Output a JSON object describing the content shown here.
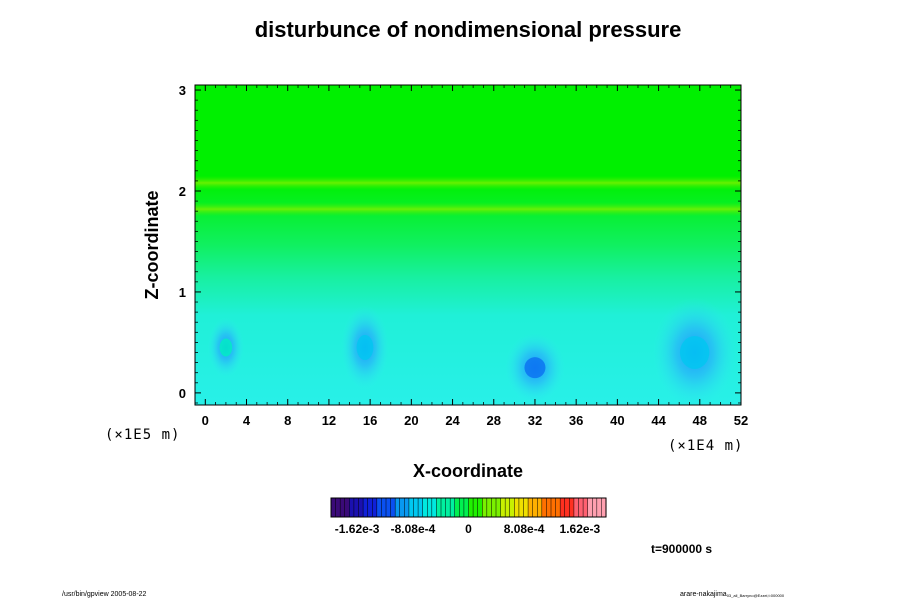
{
  "chart_data": {
    "type": "heatmap",
    "title": "disturbunce of nondimensional pressure",
    "xlabel": "X-coordinate",
    "ylabel": "Z-coordinate",
    "x_scale_label": "(×1E4 m)",
    "y_scale_label": "(×1E5 m)",
    "xlim": [
      -1,
      52
    ],
    "ylim": [
      -0.12,
      3.05
    ],
    "x_ticks": [
      "0",
      "4",
      "8",
      "12",
      "16",
      "20",
      "24",
      "28",
      "32",
      "36",
      "40",
      "44",
      "48",
      "52"
    ],
    "x_tick_values": [
      0,
      4,
      8,
      12,
      16,
      20,
      24,
      28,
      32,
      36,
      40,
      44,
      48,
      52
    ],
    "y_ticks": [
      "0",
      "1",
      "2",
      "3"
    ],
    "y_tick_values": [
      0,
      1,
      2,
      3
    ],
    "grid": false,
    "colorbar": {
      "range": [
        -0.002,
        0.002
      ],
      "tick_labels": [
        "-1.62e-3",
        "-8.08e-4",
        "0",
        "8.08e-4",
        "1.62e-3"
      ],
      "tick_values": [
        -0.00162,
        -0.000808,
        0,
        0.000808,
        0.00162
      ],
      "colors": [
        "#3a0a78",
        "#1020c8",
        "#0a70f0",
        "#00c8f0",
        "#00f0c0",
        "#00f040",
        "#7af000",
        "#e8f000",
        "#ff8000",
        "#ff2020",
        "#ff9aa0"
      ]
    },
    "background_value": 5e-05,
    "features": [
      {
        "label": "negative minimum",
        "x": 32.0,
        "z": 0.25,
        "value": -0.00095
      },
      {
        "label": "negative minimum",
        "x": 15.5,
        "z": 0.45,
        "value": -0.0008
      },
      {
        "label": "negative minimum",
        "x": 47.5,
        "z": 0.4,
        "value": -0.00065
      },
      {
        "label": "negative minimum",
        "x": 2.0,
        "z": 0.45,
        "value": -0.0004
      },
      {
        "label": "positive band",
        "x": 26.0,
        "z": 1.82,
        "value": 0.00035
      },
      {
        "label": "positive band",
        "x": 26.0,
        "z": 2.08,
        "value": 0.0002
      }
    ]
  },
  "annotations": {
    "time": "t=900000 s",
    "footer_left": "/usr/bin/gpview 2005-08-22",
    "footer_right": "arare-nakajima",
    "footer_right_sub": "03_all_Barryno@Ezzei,t:000000"
  }
}
